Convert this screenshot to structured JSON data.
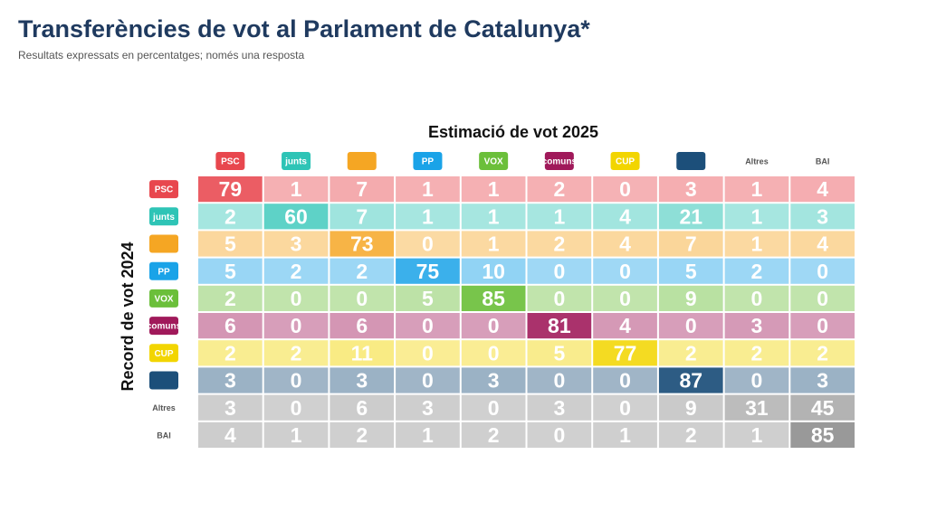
{
  "chart_data": {
    "type": "heatmap",
    "title": "Transferències de vot al Parlament de Catalunya*",
    "subtitle": "Resultats expressats en percentatges; només una resposta",
    "x_label": "Estimació de vot 2025",
    "y_label": "Record de vot 2024",
    "categories": [
      "PSC",
      "junts",
      null,
      "PP",
      "VOX",
      "comuns",
      "CUP",
      null,
      "Altres",
      "BAI"
    ],
    "series": [
      {
        "name": "PSC",
        "color": "#e8474e",
        "values": [
          79,
          1,
          7,
          1,
          1,
          2,
          0,
          3,
          1,
          4
        ]
      },
      {
        "name": "junts",
        "color": "#2ec4b6",
        "values": [
          2,
          60,
          7,
          1,
          1,
          1,
          4,
          21,
          1,
          3
        ]
      },
      {
        "name": null,
        "color": "#f5a623",
        "values": [
          5,
          3,
          73,
          0,
          1,
          2,
          4,
          7,
          1,
          4
        ]
      },
      {
        "name": "PP",
        "color": "#1aa3e8",
        "values": [
          5,
          2,
          2,
          75,
          10,
          0,
          0,
          5,
          2,
          0
        ]
      },
      {
        "name": "VOX",
        "color": "#6bbf3a",
        "values": [
          2,
          0,
          0,
          5,
          85,
          0,
          0,
          9,
          0,
          0
        ]
      },
      {
        "name": "comuns",
        "color": "#a0195a",
        "values": [
          6,
          0,
          6,
          0,
          0,
          81,
          4,
          0,
          3,
          0
        ]
      },
      {
        "name": "CUP",
        "color": "#f2d500",
        "values": [
          2,
          2,
          11,
          0,
          0,
          5,
          77,
          2,
          2,
          2
        ]
      },
      {
        "name": null,
        "color": "#1c4f7a",
        "values": [
          3,
          0,
          3,
          0,
          3,
          0,
          0,
          87,
          0,
          3
        ]
      },
      {
        "name": "Altres",
        "color": "#8f8f8f",
        "values": [
          3,
          0,
          6,
          3,
          0,
          3,
          0,
          9,
          31,
          45
        ]
      },
      {
        "name": "BAI",
        "color": "#8f8f8f",
        "values": [
          4,
          1,
          2,
          1,
          2,
          0,
          1,
          2,
          1,
          85
        ]
      }
    ]
  }
}
